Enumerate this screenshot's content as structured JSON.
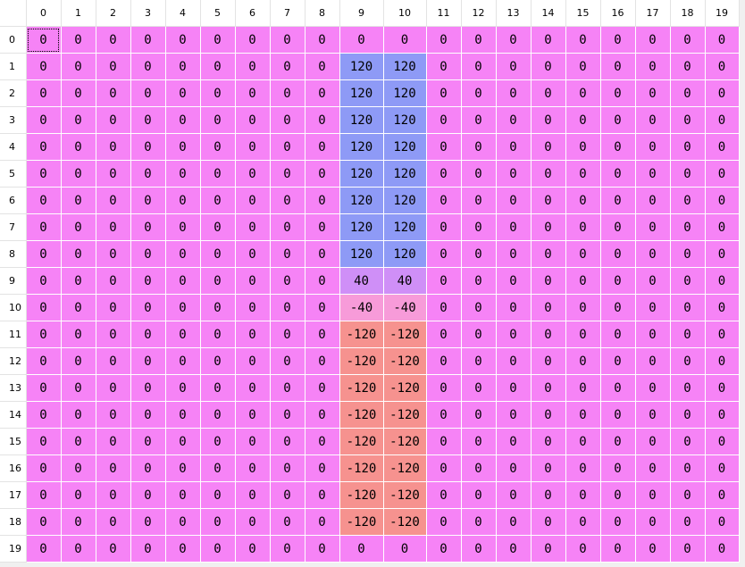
{
  "grid": {
    "columns": [
      "0",
      "1",
      "2",
      "3",
      "4",
      "5",
      "6",
      "7",
      "8",
      "9",
      "10",
      "11",
      "12",
      "13",
      "14",
      "15",
      "16",
      "17",
      "18",
      "19"
    ],
    "rows": [
      {
        "label": "0",
        "values": [
          0,
          0,
          0,
          0,
          0,
          0,
          0,
          0,
          0,
          0,
          0,
          0,
          0,
          0,
          0,
          0,
          0,
          0,
          0,
          0
        ]
      },
      {
        "label": "1",
        "values": [
          0,
          0,
          0,
          0,
          0,
          0,
          0,
          0,
          0,
          120,
          120,
          0,
          0,
          0,
          0,
          0,
          0,
          0,
          0,
          0
        ]
      },
      {
        "label": "2",
        "values": [
          0,
          0,
          0,
          0,
          0,
          0,
          0,
          0,
          0,
          120,
          120,
          0,
          0,
          0,
          0,
          0,
          0,
          0,
          0,
          0
        ]
      },
      {
        "label": "3",
        "values": [
          0,
          0,
          0,
          0,
          0,
          0,
          0,
          0,
          0,
          120,
          120,
          0,
          0,
          0,
          0,
          0,
          0,
          0,
          0,
          0
        ]
      },
      {
        "label": "4",
        "values": [
          0,
          0,
          0,
          0,
          0,
          0,
          0,
          0,
          0,
          120,
          120,
          0,
          0,
          0,
          0,
          0,
          0,
          0,
          0,
          0
        ]
      },
      {
        "label": "5",
        "values": [
          0,
          0,
          0,
          0,
          0,
          0,
          0,
          0,
          0,
          120,
          120,
          0,
          0,
          0,
          0,
          0,
          0,
          0,
          0,
          0
        ]
      },
      {
        "label": "6",
        "values": [
          0,
          0,
          0,
          0,
          0,
          0,
          0,
          0,
          0,
          120,
          120,
          0,
          0,
          0,
          0,
          0,
          0,
          0,
          0,
          0
        ]
      },
      {
        "label": "7",
        "values": [
          0,
          0,
          0,
          0,
          0,
          0,
          0,
          0,
          0,
          120,
          120,
          0,
          0,
          0,
          0,
          0,
          0,
          0,
          0,
          0
        ]
      },
      {
        "label": "8",
        "values": [
          0,
          0,
          0,
          0,
          0,
          0,
          0,
          0,
          0,
          120,
          120,
          0,
          0,
          0,
          0,
          0,
          0,
          0,
          0,
          0
        ]
      },
      {
        "label": "9",
        "values": [
          0,
          0,
          0,
          0,
          0,
          0,
          0,
          0,
          0,
          40,
          40,
          0,
          0,
          0,
          0,
          0,
          0,
          0,
          0,
          0
        ]
      },
      {
        "label": "10",
        "values": [
          0,
          0,
          0,
          0,
          0,
          0,
          0,
          0,
          0,
          -40,
          -40,
          0,
          0,
          0,
          0,
          0,
          0,
          0,
          0,
          0
        ]
      },
      {
        "label": "11",
        "values": [
          0,
          0,
          0,
          0,
          0,
          0,
          0,
          0,
          0,
          -120,
          -120,
          0,
          0,
          0,
          0,
          0,
          0,
          0,
          0,
          0
        ]
      },
      {
        "label": "12",
        "values": [
          0,
          0,
          0,
          0,
          0,
          0,
          0,
          0,
          0,
          -120,
          -120,
          0,
          0,
          0,
          0,
          0,
          0,
          0,
          0,
          0
        ]
      },
      {
        "label": "13",
        "values": [
          0,
          0,
          0,
          0,
          0,
          0,
          0,
          0,
          0,
          -120,
          -120,
          0,
          0,
          0,
          0,
          0,
          0,
          0,
          0,
          0
        ]
      },
      {
        "label": "14",
        "values": [
          0,
          0,
          0,
          0,
          0,
          0,
          0,
          0,
          0,
          -120,
          -120,
          0,
          0,
          0,
          0,
          0,
          0,
          0,
          0,
          0
        ]
      },
      {
        "label": "15",
        "values": [
          0,
          0,
          0,
          0,
          0,
          0,
          0,
          0,
          0,
          -120,
          -120,
          0,
          0,
          0,
          0,
          0,
          0,
          0,
          0,
          0
        ]
      },
      {
        "label": "16",
        "values": [
          0,
          0,
          0,
          0,
          0,
          0,
          0,
          0,
          0,
          -120,
          -120,
          0,
          0,
          0,
          0,
          0,
          0,
          0,
          0,
          0
        ]
      },
      {
        "label": "17",
        "values": [
          0,
          0,
          0,
          0,
          0,
          0,
          0,
          0,
          0,
          -120,
          -120,
          0,
          0,
          0,
          0,
          0,
          0,
          0,
          0,
          0
        ]
      },
      {
        "label": "18",
        "values": [
          0,
          0,
          0,
          0,
          0,
          0,
          0,
          0,
          0,
          -120,
          -120,
          0,
          0,
          0,
          0,
          0,
          0,
          0,
          0,
          0
        ]
      },
      {
        "label": "19",
        "values": [
          0,
          0,
          0,
          0,
          0,
          0,
          0,
          0,
          0,
          0,
          0,
          0,
          0,
          0,
          0,
          0,
          0,
          0,
          0,
          0
        ]
      }
    ],
    "current_cell": {
      "row": 0,
      "col": 0
    },
    "colors": {
      "zero": "#f683f6",
      "120": "#8e9af6",
      "40": "#cf8ff7",
      "-40": "#f79bd9",
      "-120": "#f6928f"
    }
  }
}
